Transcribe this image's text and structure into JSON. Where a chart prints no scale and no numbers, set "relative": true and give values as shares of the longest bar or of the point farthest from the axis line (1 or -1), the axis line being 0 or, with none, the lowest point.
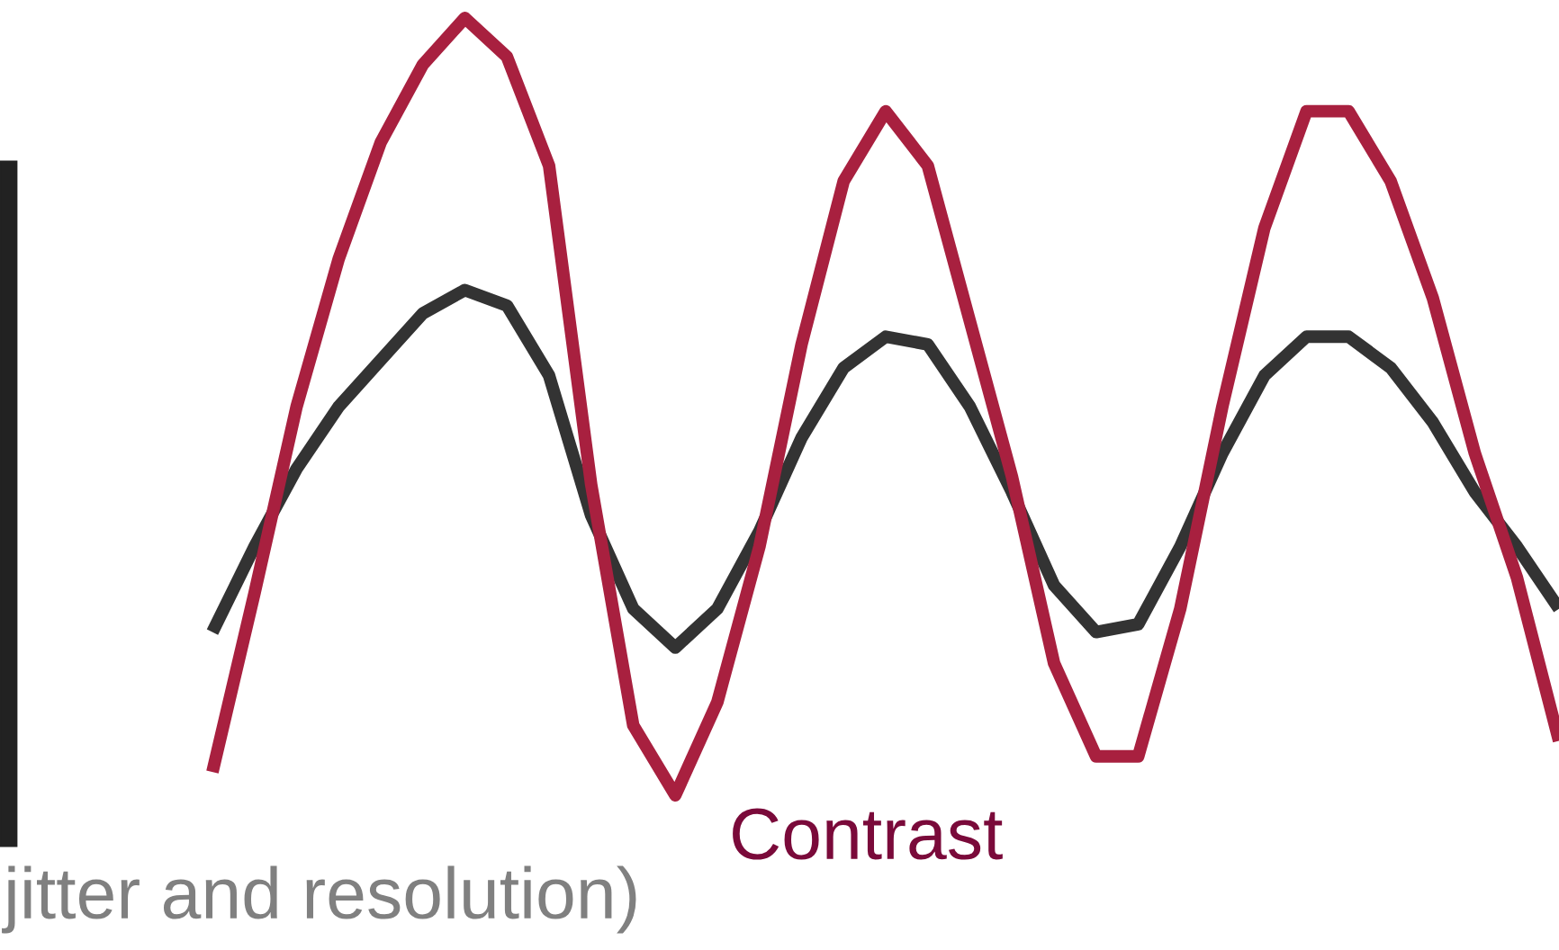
{
  "chart_data": {
    "type": "line",
    "relative": true,
    "marker": "none",
    "line_style": "solid",
    "categories": [
      null,
      null,
      null,
      null,
      null,
      null,
      null,
      null,
      null,
      null,
      null,
      null,
      null,
      null,
      null,
      null,
      null,
      null,
      null,
      null,
      null,
      null,
      null,
      null,
      null,
      null,
      null,
      null,
      null,
      null,
      null,
      null,
      null
    ],
    "series": [
      {
        "color": "#333333",
        "values": [
          0.21,
          0.32,
          0.42,
          0.5,
          0.56,
          0.62,
          0.65,
          0.63,
          0.54,
          0.36,
          0.24,
          0.19,
          0.24,
          0.34,
          0.46,
          0.55,
          0.59,
          0.58,
          0.5,
          0.39,
          0.27,
          0.21,
          0.22,
          0.32,
          0.44,
          0.54,
          0.59,
          0.59,
          0.55,
          0.48,
          0.39,
          0.32,
          0.24
        ]
      },
      {
        "color": "#a8203f",
        "values": [
          0.03,
          0.26,
          0.5,
          0.69,
          0.84,
          0.94,
          1.0,
          0.95,
          0.81,
          0.4,
          0.09,
          0.0,
          0.12,
          0.32,
          0.58,
          0.79,
          0.88,
          0.81,
          0.61,
          0.41,
          0.17,
          0.05,
          0.05,
          0.24,
          0.5,
          0.73,
          0.88,
          0.88,
          0.79,
          0.64,
          0.44,
          0.28,
          0.07
        ]
      }
    ],
    "annotations": [
      "Contrast",
      "jitter and resolution)"
    ]
  }
}
